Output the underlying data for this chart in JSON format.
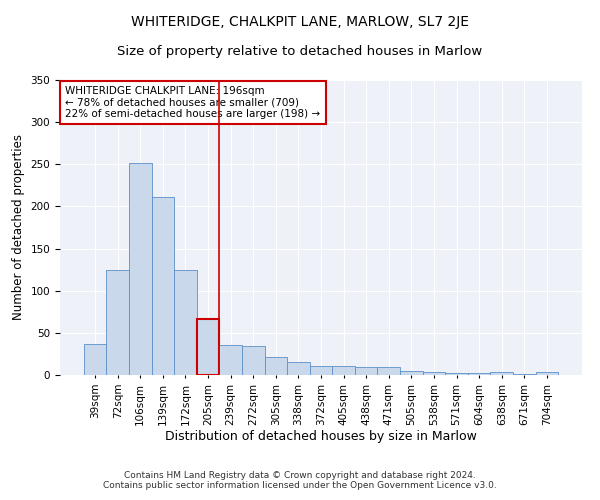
{
  "title": "WHITERIDGE, CHALKPIT LANE, MARLOW, SL7 2JE",
  "subtitle": "Size of property relative to detached houses in Marlow",
  "xlabel": "Distribution of detached houses by size in Marlow",
  "ylabel": "Number of detached properties",
  "categories": [
    "39sqm",
    "72sqm",
    "106sqm",
    "139sqm",
    "172sqm",
    "205sqm",
    "239sqm",
    "272sqm",
    "305sqm",
    "338sqm",
    "372sqm",
    "405sqm",
    "438sqm",
    "471sqm",
    "505sqm",
    "538sqm",
    "571sqm",
    "604sqm",
    "638sqm",
    "671sqm",
    "704sqm"
  ],
  "values": [
    37,
    125,
    252,
    211,
    125,
    67,
    36,
    35,
    21,
    15,
    11,
    11,
    10,
    9,
    5,
    4,
    2,
    2,
    3,
    1,
    4
  ],
  "bar_color": "#c9d9eb",
  "bar_edge_color": "#5b8fc9",
  "highlight_bar_index": 5,
  "highlight_edge_color": "#cc0000",
  "annotation_box_text": "WHITERIDGE CHALKPIT LANE: 196sqm\n← 78% of detached houses are smaller (709)\n22% of semi-detached houses are larger (198) →",
  "ylim": [
    0,
    350
  ],
  "yticks": [
    0,
    50,
    100,
    150,
    200,
    250,
    300,
    350
  ],
  "background_color": "#eef2f8",
  "footer": "Contains HM Land Registry data © Crown copyright and database right 2024.\nContains public sector information licensed under the Open Government Licence v3.0.",
  "title_fontsize": 10,
  "subtitle_fontsize": 9.5,
  "xlabel_fontsize": 9,
  "ylabel_fontsize": 8.5,
  "tick_fontsize": 7.5,
  "annotation_fontsize": 7.5,
  "footer_fontsize": 6.5
}
